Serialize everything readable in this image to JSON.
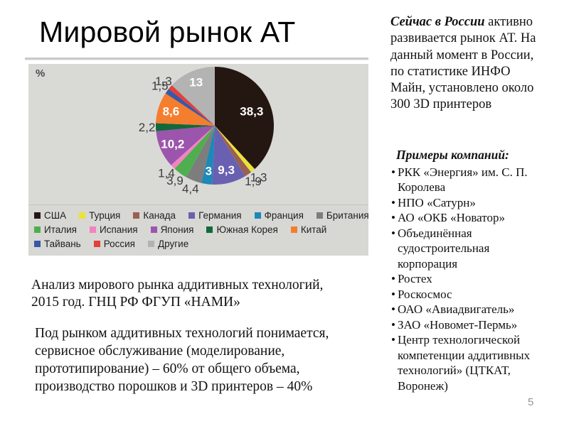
{
  "slide": {
    "title": "Мировой рынок АТ",
    "page_number": "5"
  },
  "chart_data": {
    "type": "pie",
    "unit_label": "%",
    "legend_position": "bottom",
    "start_angle": "top, clockwise",
    "slices": [
      {
        "label": "США",
        "value": 38.3,
        "text": "38,3",
        "color": "#241712",
        "pos": "in",
        "lr": 0.67
      },
      {
        "label": "Турция",
        "value": 1.3,
        "text": "1,3",
        "color": "#eae33a",
        "pos": "out"
      },
      {
        "label": "Канада",
        "value": 1.9,
        "text": "1,9",
        "color": "#9a6050",
        "pos": "out"
      },
      {
        "label": "Германия",
        "value": 9.3,
        "text": "9,3",
        "color": "#6a60b2",
        "pos": "in"
      },
      {
        "label": "Франция",
        "value": 3,
        "text": "3",
        "color": "#1e88b8",
        "pos": "in"
      },
      {
        "label": "Британия",
        "value": 4.4,
        "text": "4,4",
        "color": "#7d7d7d",
        "pos": "out"
      },
      {
        "label": "Италия",
        "value": 3.9,
        "text": "3,9",
        "color": "#4fae4f",
        "pos": "out"
      },
      {
        "label": "Испания",
        "value": 1.4,
        "text": "1,4",
        "color": "#f383c0",
        "pos": "out"
      },
      {
        "label": "Япония",
        "value": 10.2,
        "text": "10,2",
        "color": "#9c55ad",
        "pos": "in"
      },
      {
        "label": "Южная Корея",
        "value": 2.2,
        "text": "2,2",
        "color": "#11693a",
        "pos": "out"
      },
      {
        "label": "Китай",
        "value": 8.6,
        "text": "8,6",
        "color": "#f47d2e",
        "pos": "in"
      },
      {
        "label": "Тайвань",
        "value": 1.5,
        "text": "1,5",
        "color": "#3a58a6",
        "pos": "out"
      },
      {
        "label": "Россия",
        "value": 1.3,
        "text": "1,3",
        "color": "#e2403a",
        "pos": "out"
      },
      {
        "label": "Другие",
        "value": 13,
        "text": "13",
        "color": "#b3b3b3",
        "pos": "in",
        "lr": 0.8
      }
    ],
    "legend_rows": [
      [
        "США",
        "Турция",
        "Канада",
        "Германия",
        "Франция",
        "Британия"
      ],
      [
        "Италия",
        "Испания",
        "Япония",
        "Южная Корея",
        "Китай"
      ],
      [
        "Тайвань",
        "Россия",
        "Другие"
      ]
    ]
  },
  "right_column": {
    "intro_bold": "Сейчас в России",
    "intro_rest": " активно\nразвивается рынок АТ. На\nданный момент в России,\nпо статистике ИНФО\nМайн, установлено около\n300 3D принтеров",
    "examples_title": "Примеры компаний:",
    "companies": [
      "РКК «Энергия» им. С. П.\nКоролева",
      "НПО «Сатурн»",
      "АО «ОКБ «Новатор»",
      "Объединённая\nсудостроительная\nкорпорация",
      "Ростех",
      "Роскосмос",
      "ОАО «Авиадвигатель»",
      "ЗАО «Новомет-Пермь»",
      "Центр технологической\nкомпетенции аддитивных\nтехнологий» (ЦТКАТ,\nВоронеж)"
    ]
  },
  "bottom_left": {
    "source": "Анализ мирового рынка аддитивных технологий,\n2015 год. ГНЦ РФ ФГУП «НАМИ»",
    "definition": "Под рынком аддитивных технологий понимается,\nсервисное обслуживание (моделирование,\nпрототипирование) – 60% от общего объема,\nпроизводство порошков и 3D принтеров – 40%"
  }
}
